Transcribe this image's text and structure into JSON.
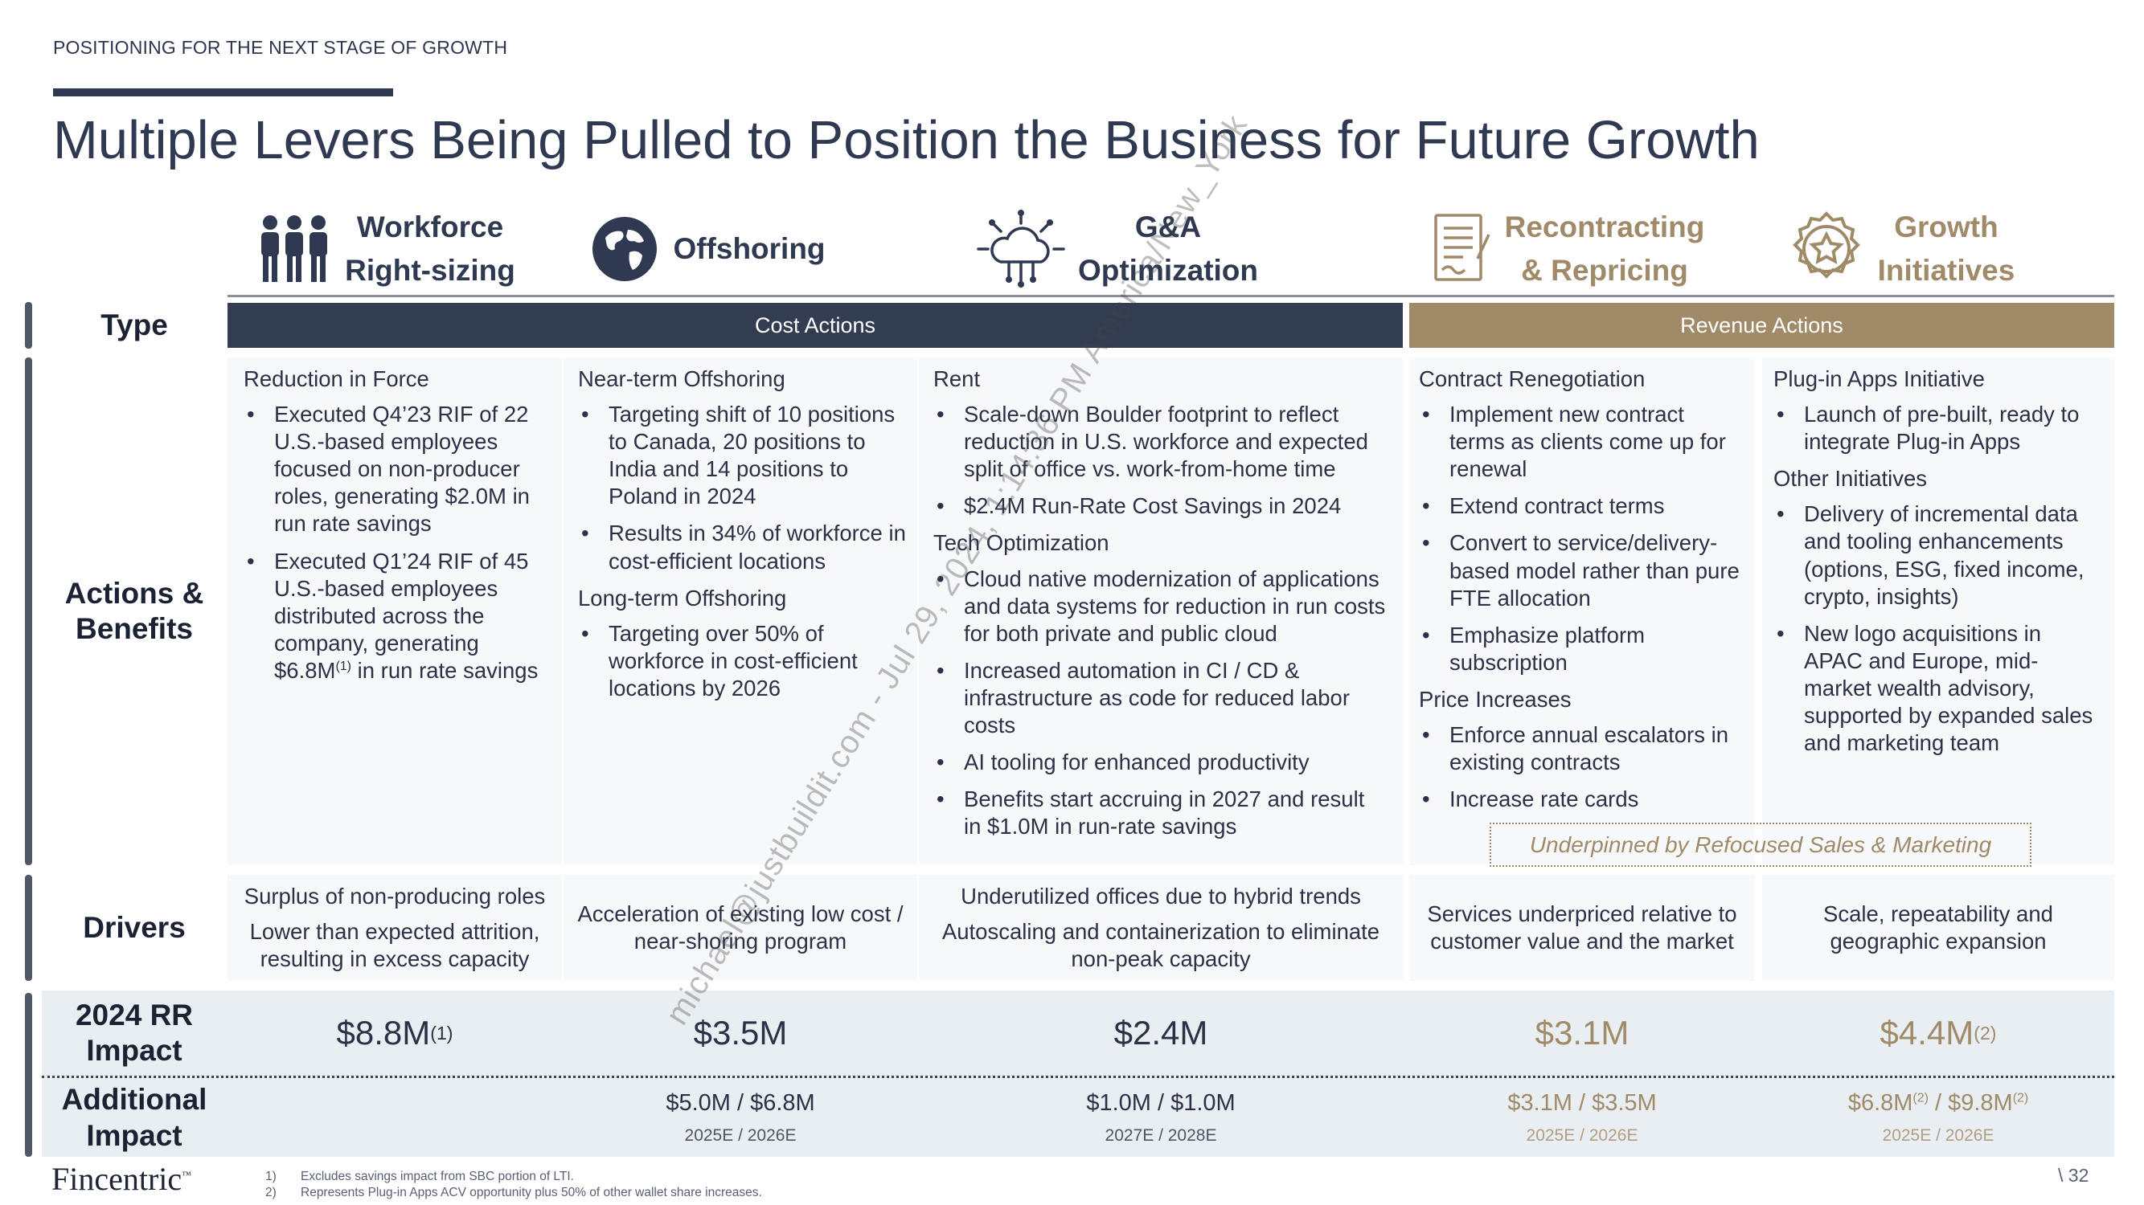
{
  "header": {
    "eyebrow": "POSITIONING FOR THE NEXT STAGE OF GROWTH",
    "title": "Multiple Levers Being Pulled to Position the Business for Future Growth"
  },
  "columns": [
    {
      "line1": "Workforce",
      "line2": "Right-sizing",
      "icon": "people-icon"
    },
    {
      "line1": "Offshoring",
      "line2": "",
      "icon": "globe-icon"
    },
    {
      "line1": "G&A",
      "line2": "Optimization",
      "icon": "cloud-network-icon"
    },
    {
      "line1": "Recontracting",
      "line2": "& Repricing",
      "icon": "contract-document-icon"
    },
    {
      "line1": "Growth",
      "line2": "Initiatives",
      "icon": "star-badge-icon"
    }
  ],
  "row_labels": {
    "type": "Type",
    "actions_line1": "Actions &",
    "actions_line2": "Benefits",
    "drivers": "Drivers",
    "rr_line1": "2024 RR",
    "rr_line2": "Impact",
    "addl_line1": "Additional",
    "addl_line2": "Impact"
  },
  "type_bands": {
    "cost": "Cost Actions",
    "revenue": "Revenue Actions"
  },
  "actions": {
    "workforce": {
      "heading": "Reduction in Force",
      "b1": "Executed Q4’23 RIF of 22 U.S.-based employees focused on non-producer roles, generating $2.0M in run rate savings",
      "b2_pre": "Executed Q1’24 RIF of 45 U.S.-based employees distributed across the company, generating $6.8M",
      "b2_sup": "(1)",
      "b2_post": " in run rate savings"
    },
    "offshoring": {
      "h1": "Near-term Offshoring",
      "b1": "Targeting shift of 10 positions to Canada, 20 positions to India and 14 positions to Poland in 2024",
      "b2": "Results in 34% of workforce in cost-efficient locations",
      "h2": "Long-term Offshoring",
      "b3": "Targeting over 50% of workforce in cost-efficient locations by 2026"
    },
    "ga": {
      "h1": "Rent",
      "b1": "Scale-down Boulder footprint to reflect reduction in U.S. workforce and expected split of office vs. work-from-home time",
      "b2": "$2.4M Run-Rate Cost Savings in 2024",
      "h2": "Tech Optimization",
      "b3": "Cloud native modernization of applications and data systems for reduction in run costs for both private and public cloud",
      "b4": "Increased automation in CI / CD & infrastructure as code for reduced labor costs",
      "b5": "AI tooling for enhanced productivity",
      "b6": "Benefits start accruing in 2027 and result in $1.0M in run-rate savings"
    },
    "recontracting": {
      "h1": "Contract Renegotiation",
      "b1": "Implement new contract terms as clients come up for renewal",
      "b2": "Extend contract terms",
      "b3": "Convert to service/delivery-based model rather than pure FTE allocation",
      "b4": "Emphasize platform subscription",
      "h2": "Price Increases",
      "b5": "Enforce annual escalators in existing contracts",
      "b6": "Increase rate cards"
    },
    "growth": {
      "h1": "Plug-in Apps Initiative",
      "b1": "Launch of pre-built, ready to integrate Plug-in Apps",
      "h2": "Other Initiatives",
      "b2": "Delivery of incremental data and tooling enhancements (options, ESG, fixed income, crypto, insights)",
      "b3": "New logo acquisitions in APAC and Europe, mid-market wealth advisory, supported by expanded sales and marketing team"
    },
    "underpinned": "Underpinned by Refocused Sales & Marketing"
  },
  "drivers": {
    "workforce_1": "Surplus of non-producing roles",
    "workforce_2": "Lower than expected attrition, resulting in excess capacity",
    "offshoring": "Acceleration of existing low cost / near-shoring program",
    "ga_1": "Underutilized offices due to hybrid trends",
    "ga_2": "Autoscaling and containerization to eliminate non-peak capacity",
    "recontracting": "Services underpriced relative to customer value and the market",
    "growth": "Scale, repeatability  and geographic expansion"
  },
  "rr_impact": {
    "workforce": "$8.8M",
    "workforce_sup": "(1)",
    "offshoring": "$3.5M",
    "ga": "$2.4M",
    "recontracting": "$3.1M",
    "growth": "$4.4M",
    "growth_sup": "(2)"
  },
  "additional": {
    "offshoring": "$5.0M / $6.8M",
    "offshoring_years": "2025E / 2026E",
    "ga": "$1.0M / $1.0M",
    "ga_years": "2027E / 2028E",
    "recontracting": "$3.1M / $3.5M",
    "recontracting_years": "2025E / 2026E",
    "growth_a": "$6.8M",
    "growth_a_sup": "(2)",
    "growth_sep": " / ",
    "growth_b": "$9.8M",
    "growth_b_sup": "(2)",
    "growth_years": "2025E / 2026E"
  },
  "footer": {
    "logo": "Fincentric",
    "logo_tm": "™",
    "fn1_num": "1)",
    "fn1": "Excludes savings impact from SBC portion of LTI.",
    "fn2_num": "2)",
    "fn2": "Represents Plug-in Apps ACV opportunity plus 50% of other wallet share increases.",
    "page": "\\  32"
  },
  "watermark": "michael@justbuildit.com - Jul 29, 2024, 1:14:36 PM America/New_York",
  "colors": {
    "navy": "#333d52",
    "gold": "#a08a68",
    "cell": "#f7f8fa",
    "impact_cell": "#e8eef1"
  }
}
